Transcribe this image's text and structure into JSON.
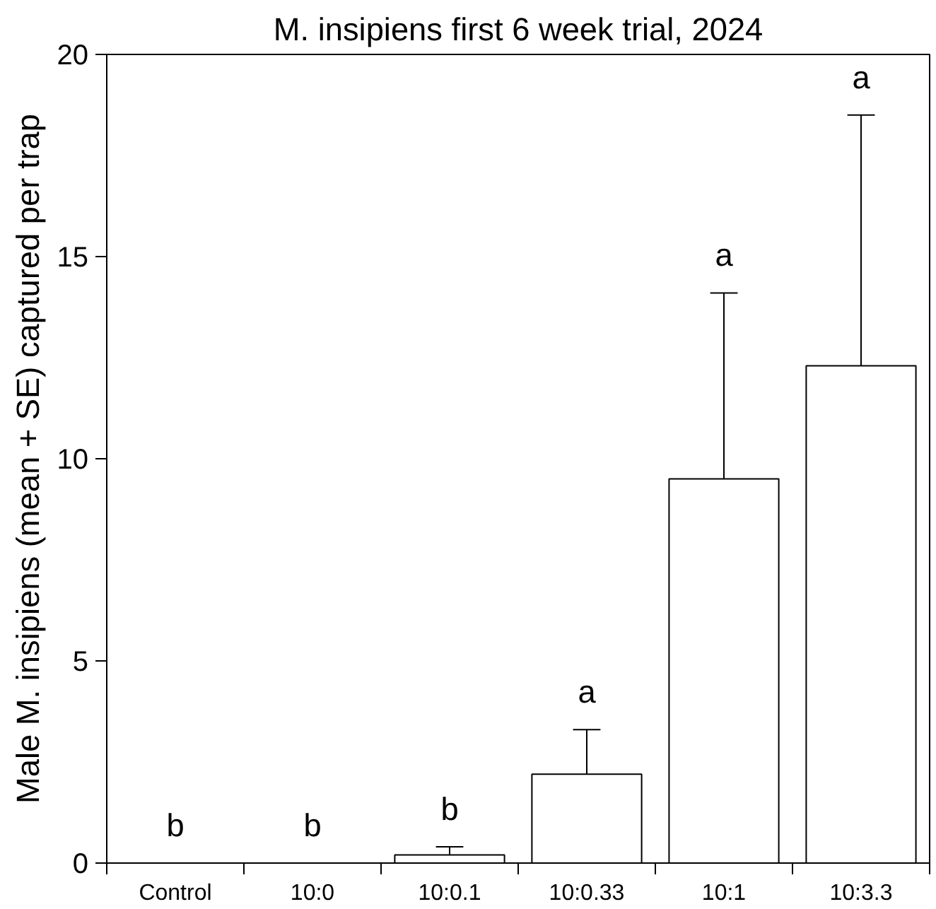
{
  "chart_data": {
    "type": "bar",
    "title": "M. insipiens first 6 week trial, 2024",
    "ylabel": "Male M. insipiens (mean + SE) captured per trap",
    "categories": [
      "Control",
      "10:0",
      "10:0.1",
      "10:0.33",
      "10:1",
      "10:3.3"
    ],
    "values": [
      0,
      0,
      0.2,
      2.2,
      9.5,
      12.3
    ],
    "errors": [
      null,
      null,
      0.2,
      1.1,
      4.6,
      6.2
    ],
    "color": "#ffffff",
    "ylim": [
      0,
      20
    ],
    "yticks": [
      0,
      5,
      10,
      15,
      20
    ],
    "grid": false,
    "annotations": [
      "b",
      "b",
      "b",
      "a",
      "a",
      "a"
    ]
  }
}
